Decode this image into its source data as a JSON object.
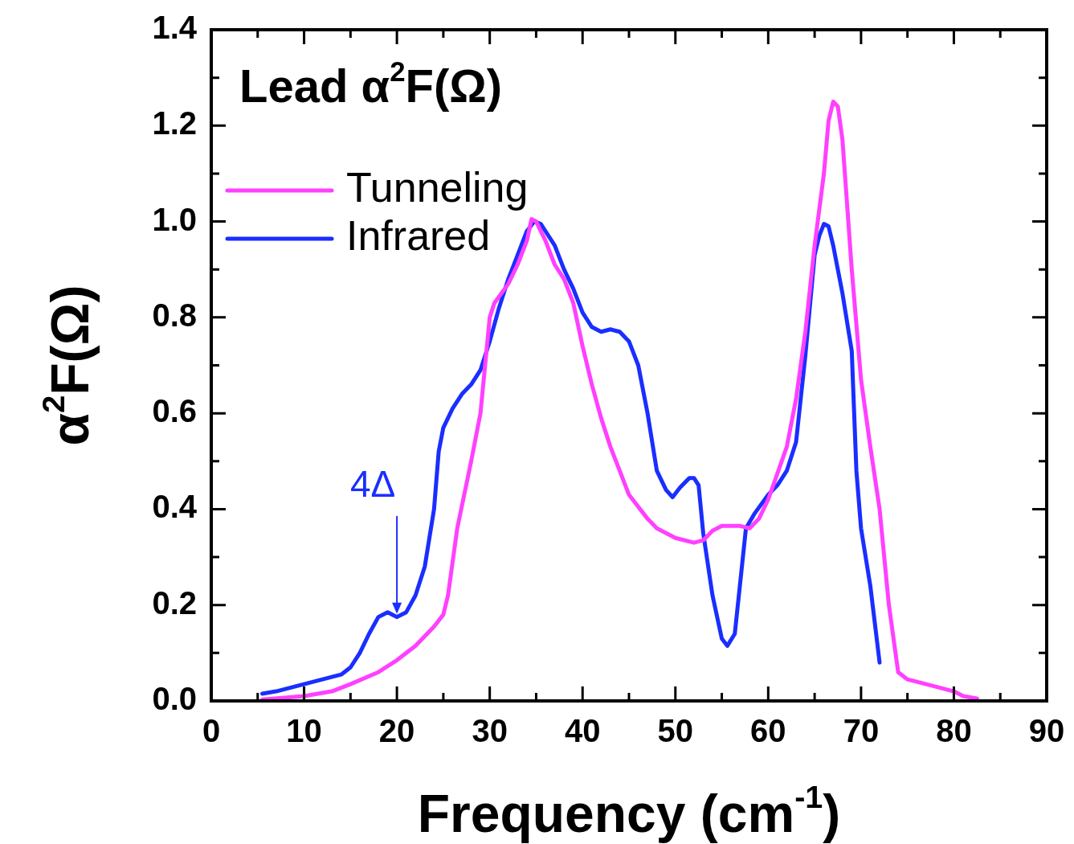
{
  "chart_data": {
    "type": "line",
    "title": "Lead α$^{2}$F(Ω)",
    "xlabel": "Frequency (cm$^{-1}$)",
    "ylabel": "α$^{2}$F(Ω)",
    "xlim": [
      0,
      90
    ],
    "ylim": [
      0,
      1.4
    ],
    "xticks": [
      0,
      {
        "value": 5,
        "label": null
      },
      10,
      {
        "value": 15,
        "label": null
      },
      20,
      {
        "value": 25,
        "label": null
      },
      30,
      {
        "value": 35,
        "label": null
      },
      40,
      {
        "value": 45,
        "label": null
      },
      50,
      {
        "value": 55,
        "label": null
      },
      60,
      {
        "value": 65,
        "label": null
      },
      70,
      {
        "value": 75,
        "label": null
      },
      80,
      {
        "value": 85,
        "label": null
      },
      90
    ],
    "yticks": [
      {
        "value": 0,
        "label": "0.0"
      },
      {
        "value": 0.1,
        "label": null
      },
      {
        "value": 0.2,
        "label": "0.2"
      },
      {
        "value": 0.3,
        "label": null
      },
      {
        "value": 0.4,
        "label": "0.4"
      },
      {
        "value": 0.5,
        "label": null
      },
      {
        "value": 0.6,
        "label": "0.6"
      },
      {
        "value": 0.7,
        "label": null
      },
      {
        "value": 0.8,
        "label": "0.8"
      },
      {
        "value": 0.9,
        "label": null
      },
      {
        "value": 1.0,
        "label": "1.0"
      },
      {
        "value": 1.1,
        "label": null
      },
      {
        "value": 1.2,
        "label": "1.2"
      },
      {
        "value": 1.3,
        "label": null
      },
      {
        "value": 1.4,
        "label": "1.4"
      }
    ],
    "legend": "top left",
    "grid": false,
    "marker": "none",
    "line_style": "solid",
    "annotations": [
      {
        "text": "4Δ",
        "x": 20,
        "y": 0.175
      }
    ],
    "series": [
      {
        "name": "Tunneling",
        "color": "#ff40ff",
        "x": [
          5.5,
          10,
          13,
          15,
          18,
          20,
          22,
          24,
          25,
          25.5,
          26.5,
          28,
          29,
          29.5,
          30,
          30.5,
          32,
          33,
          34,
          34.5,
          35,
          36,
          37,
          38,
          39,
          40,
          41,
          42,
          43,
          44,
          45,
          47,
          48,
          50,
          52,
          53,
          54,
          55,
          57,
          58,
          59,
          60,
          62,
          63,
          64,
          65,
          66,
          66.5,
          67,
          67.5,
          68,
          69,
          70,
          71,
          72,
          73,
          74,
          75,
          77,
          80,
          81,
          82.5
        ],
        "values": [
          0.003,
          0.01,
          0.02,
          0.035,
          0.06,
          0.085,
          0.115,
          0.155,
          0.18,
          0.22,
          0.36,
          0.5,
          0.6,
          0.7,
          0.8,
          0.83,
          0.87,
          0.91,
          0.96,
          1.005,
          1.0,
          0.96,
          0.91,
          0.88,
          0.83,
          0.74,
          0.66,
          0.59,
          0.53,
          0.48,
          0.43,
          0.38,
          0.36,
          0.34,
          0.33,
          0.335,
          0.355,
          0.365,
          0.365,
          0.36,
          0.38,
          0.42,
          0.53,
          0.63,
          0.77,
          0.95,
          1.1,
          1.21,
          1.25,
          1.24,
          1.17,
          0.9,
          0.67,
          0.53,
          0.4,
          0.2,
          0.06,
          0.045,
          0.035,
          0.02,
          0.01,
          0.005
        ]
      },
      {
        "name": "Infrared",
        "color": "#1a2eff",
        "x": [
          5.5,
          7,
          10,
          12,
          14,
          15,
          16,
          17,
          18,
          19,
          20,
          21,
          22,
          23,
          24,
          24.5,
          25,
          26,
          27,
          28,
          29,
          30,
          31,
          32,
          33,
          34,
          34.8,
          35.5,
          36,
          37,
          38,
          39,
          40,
          41,
          42,
          43,
          44,
          45,
          46,
          47,
          48,
          49,
          49.7,
          50.5,
          51.5,
          52,
          52.5,
          53,
          54,
          55,
          55.6,
          56.4,
          57,
          57.6,
          58.5,
          60,
          61,
          62,
          63,
          64,
          65,
          65.5,
          66,
          66.5,
          67,
          67.5,
          68,
          69,
          69.5,
          70,
          71,
          72
        ],
        "values": [
          0.015,
          0.02,
          0.035,
          0.045,
          0.055,
          0.07,
          0.1,
          0.14,
          0.175,
          0.185,
          0.175,
          0.185,
          0.22,
          0.28,
          0.4,
          0.52,
          0.57,
          0.61,
          0.64,
          0.66,
          0.69,
          0.75,
          0.82,
          0.88,
          0.93,
          0.98,
          1.0,
          0.995,
          0.98,
          0.95,
          0.9,
          0.86,
          0.81,
          0.78,
          0.77,
          0.775,
          0.77,
          0.75,
          0.7,
          0.6,
          0.48,
          0.44,
          0.425,
          0.445,
          0.465,
          0.465,
          0.45,
          0.35,
          0.22,
          0.13,
          0.115,
          0.14,
          0.25,
          0.36,
          0.39,
          0.43,
          0.45,
          0.48,
          0.54,
          0.72,
          0.93,
          0.97,
          0.995,
          0.99,
          0.95,
          0.9,
          0.85,
          0.73,
          0.48,
          0.36,
          0.24,
          0.08
        ]
      }
    ]
  }
}
